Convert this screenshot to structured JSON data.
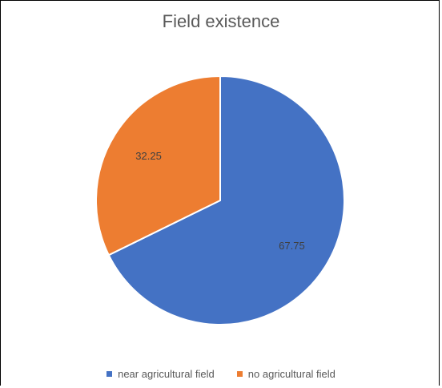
{
  "chart_data": {
    "type": "pie",
    "title": "Field existence",
    "categories": [
      "near agricultural field",
      "no agricultural field"
    ],
    "values": [
      67.75,
      32.25
    ],
    "data_labels": [
      "67.75",
      "32.25"
    ],
    "colors": [
      "#4472C4",
      "#ED7D31"
    ],
    "legend_position": "bottom"
  }
}
